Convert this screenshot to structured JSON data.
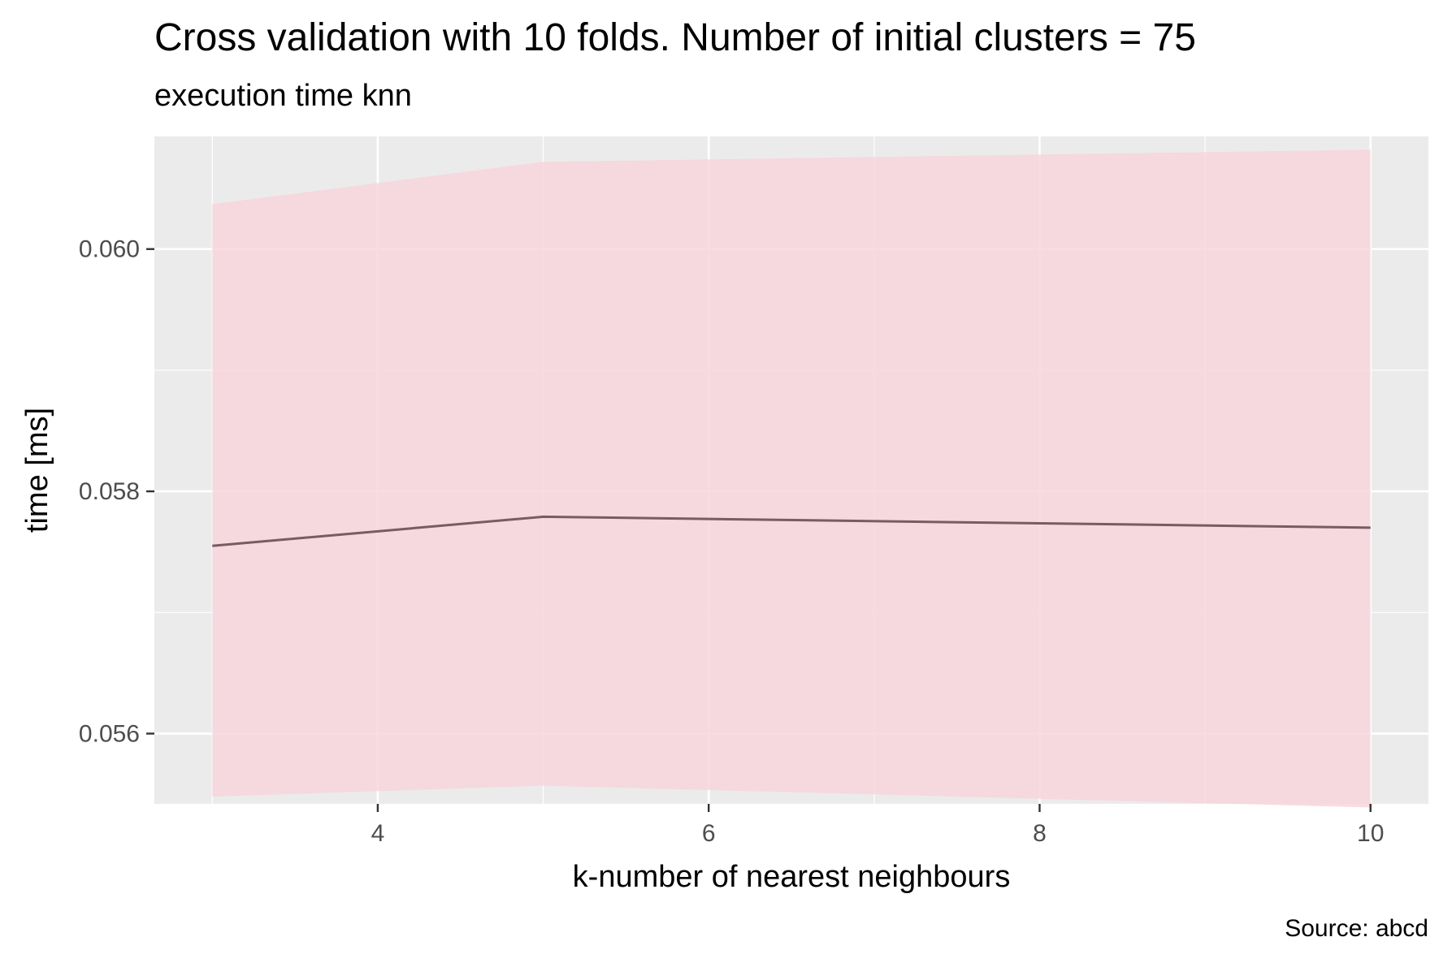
{
  "chart_data": {
    "type": "area",
    "title": "Cross validation with 10 folds. Number of initial clusters =  75",
    "subtitle": "execution time knn",
    "xlabel": "k-number of nearest neighbours",
    "ylabel": "time [ms]",
    "caption": "Source: abcd",
    "xlim": [
      2.65,
      10.35
    ],
    "ylim": [
      0.05542,
      0.06093
    ],
    "x_ticks": [
      4,
      6,
      8,
      10
    ],
    "x_tick_labels": [
      "4",
      "6",
      "8",
      "10"
    ],
    "y_ticks": [
      0.056,
      0.058,
      0.06
    ],
    "y_tick_labels": [
      "0.056",
      "0.058",
      "0.060"
    ],
    "grid": true,
    "legend": "none",
    "colors": {
      "panel": "#ebebeb",
      "grid": "#ffffff",
      "ribbon": "#f8d3dc",
      "line": "#7a5a63",
      "tick_text": "#4d4d4d"
    },
    "series": [
      {
        "x": [
          3,
          5,
          10
        ],
        "y": [
          0.05755,
          0.05779,
          0.0577
        ],
        "ymin": [
          0.05548,
          0.05557,
          0.05539
        ],
        "ymax": [
          0.06037,
          0.06072,
          0.06082
        ]
      }
    ]
  }
}
